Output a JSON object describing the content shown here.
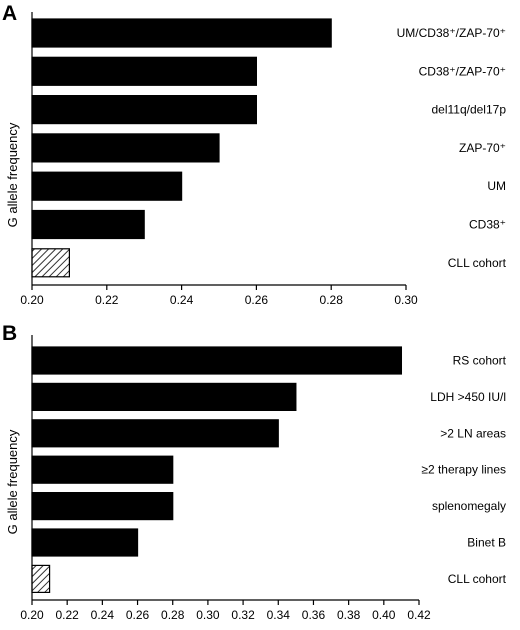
{
  "chart_data": [
    {
      "panel": "A",
      "type": "bar",
      "orientation": "horizontal",
      "ylabel": "G allele frequency",
      "xlim": [
        0.2,
        0.3
      ],
      "xticks": [
        "0.20",
        "0.22",
        "0.24",
        "0.26",
        "0.28",
        "0.30"
      ],
      "grid": false,
      "categories": [
        {
          "label": "UM/CD38⁺/ZAP-70⁺",
          "value": 0.28,
          "pattern": "solid"
        },
        {
          "label": "CD38⁺/ZAP-70⁺",
          "value": 0.26,
          "pattern": "solid"
        },
        {
          "label": "del11q/del17p",
          "value": 0.26,
          "pattern": "solid"
        },
        {
          "label": "ZAP-70⁺",
          "value": 0.25,
          "pattern": "solid"
        },
        {
          "label": "UM",
          "value": 0.24,
          "pattern": "solid"
        },
        {
          "label": "CD38⁺",
          "value": 0.23,
          "pattern": "solid"
        },
        {
          "label": "CLL cohort",
          "value": 0.21,
          "pattern": "hatched"
        }
      ]
    },
    {
      "panel": "B",
      "type": "bar",
      "orientation": "horizontal",
      "ylabel": "G allele frequency",
      "xlim": [
        0.2,
        0.42
      ],
      "xticks": [
        "0.20",
        "0.22",
        "0.24",
        "0.26",
        "0.28",
        "0.30",
        "0.32",
        "0.34",
        "0.36",
        "0.38",
        "0.40",
        "0.42"
      ],
      "grid": false,
      "categories": [
        {
          "label": "RS cohort",
          "value": 0.41,
          "pattern": "solid"
        },
        {
          "label": "LDH >450 IU/l",
          "value": 0.35,
          "pattern": "solid"
        },
        {
          "label": ">2 LN areas",
          "value": 0.34,
          "pattern": "solid"
        },
        {
          "label": "≥2 therapy lines",
          "value": 0.28,
          "pattern": "solid"
        },
        {
          "label": "splenomegaly",
          "value": 0.28,
          "pattern": "solid"
        },
        {
          "label": "Binet B",
          "value": 0.26,
          "pattern": "solid"
        },
        {
          "label": "CLL cohort",
          "value": 0.21,
          "pattern": "hatched"
        }
      ]
    }
  ],
  "colors": {
    "bar": "#000000",
    "axis": "#000000",
    "hatch": "#000000",
    "background": "#ffffff"
  }
}
